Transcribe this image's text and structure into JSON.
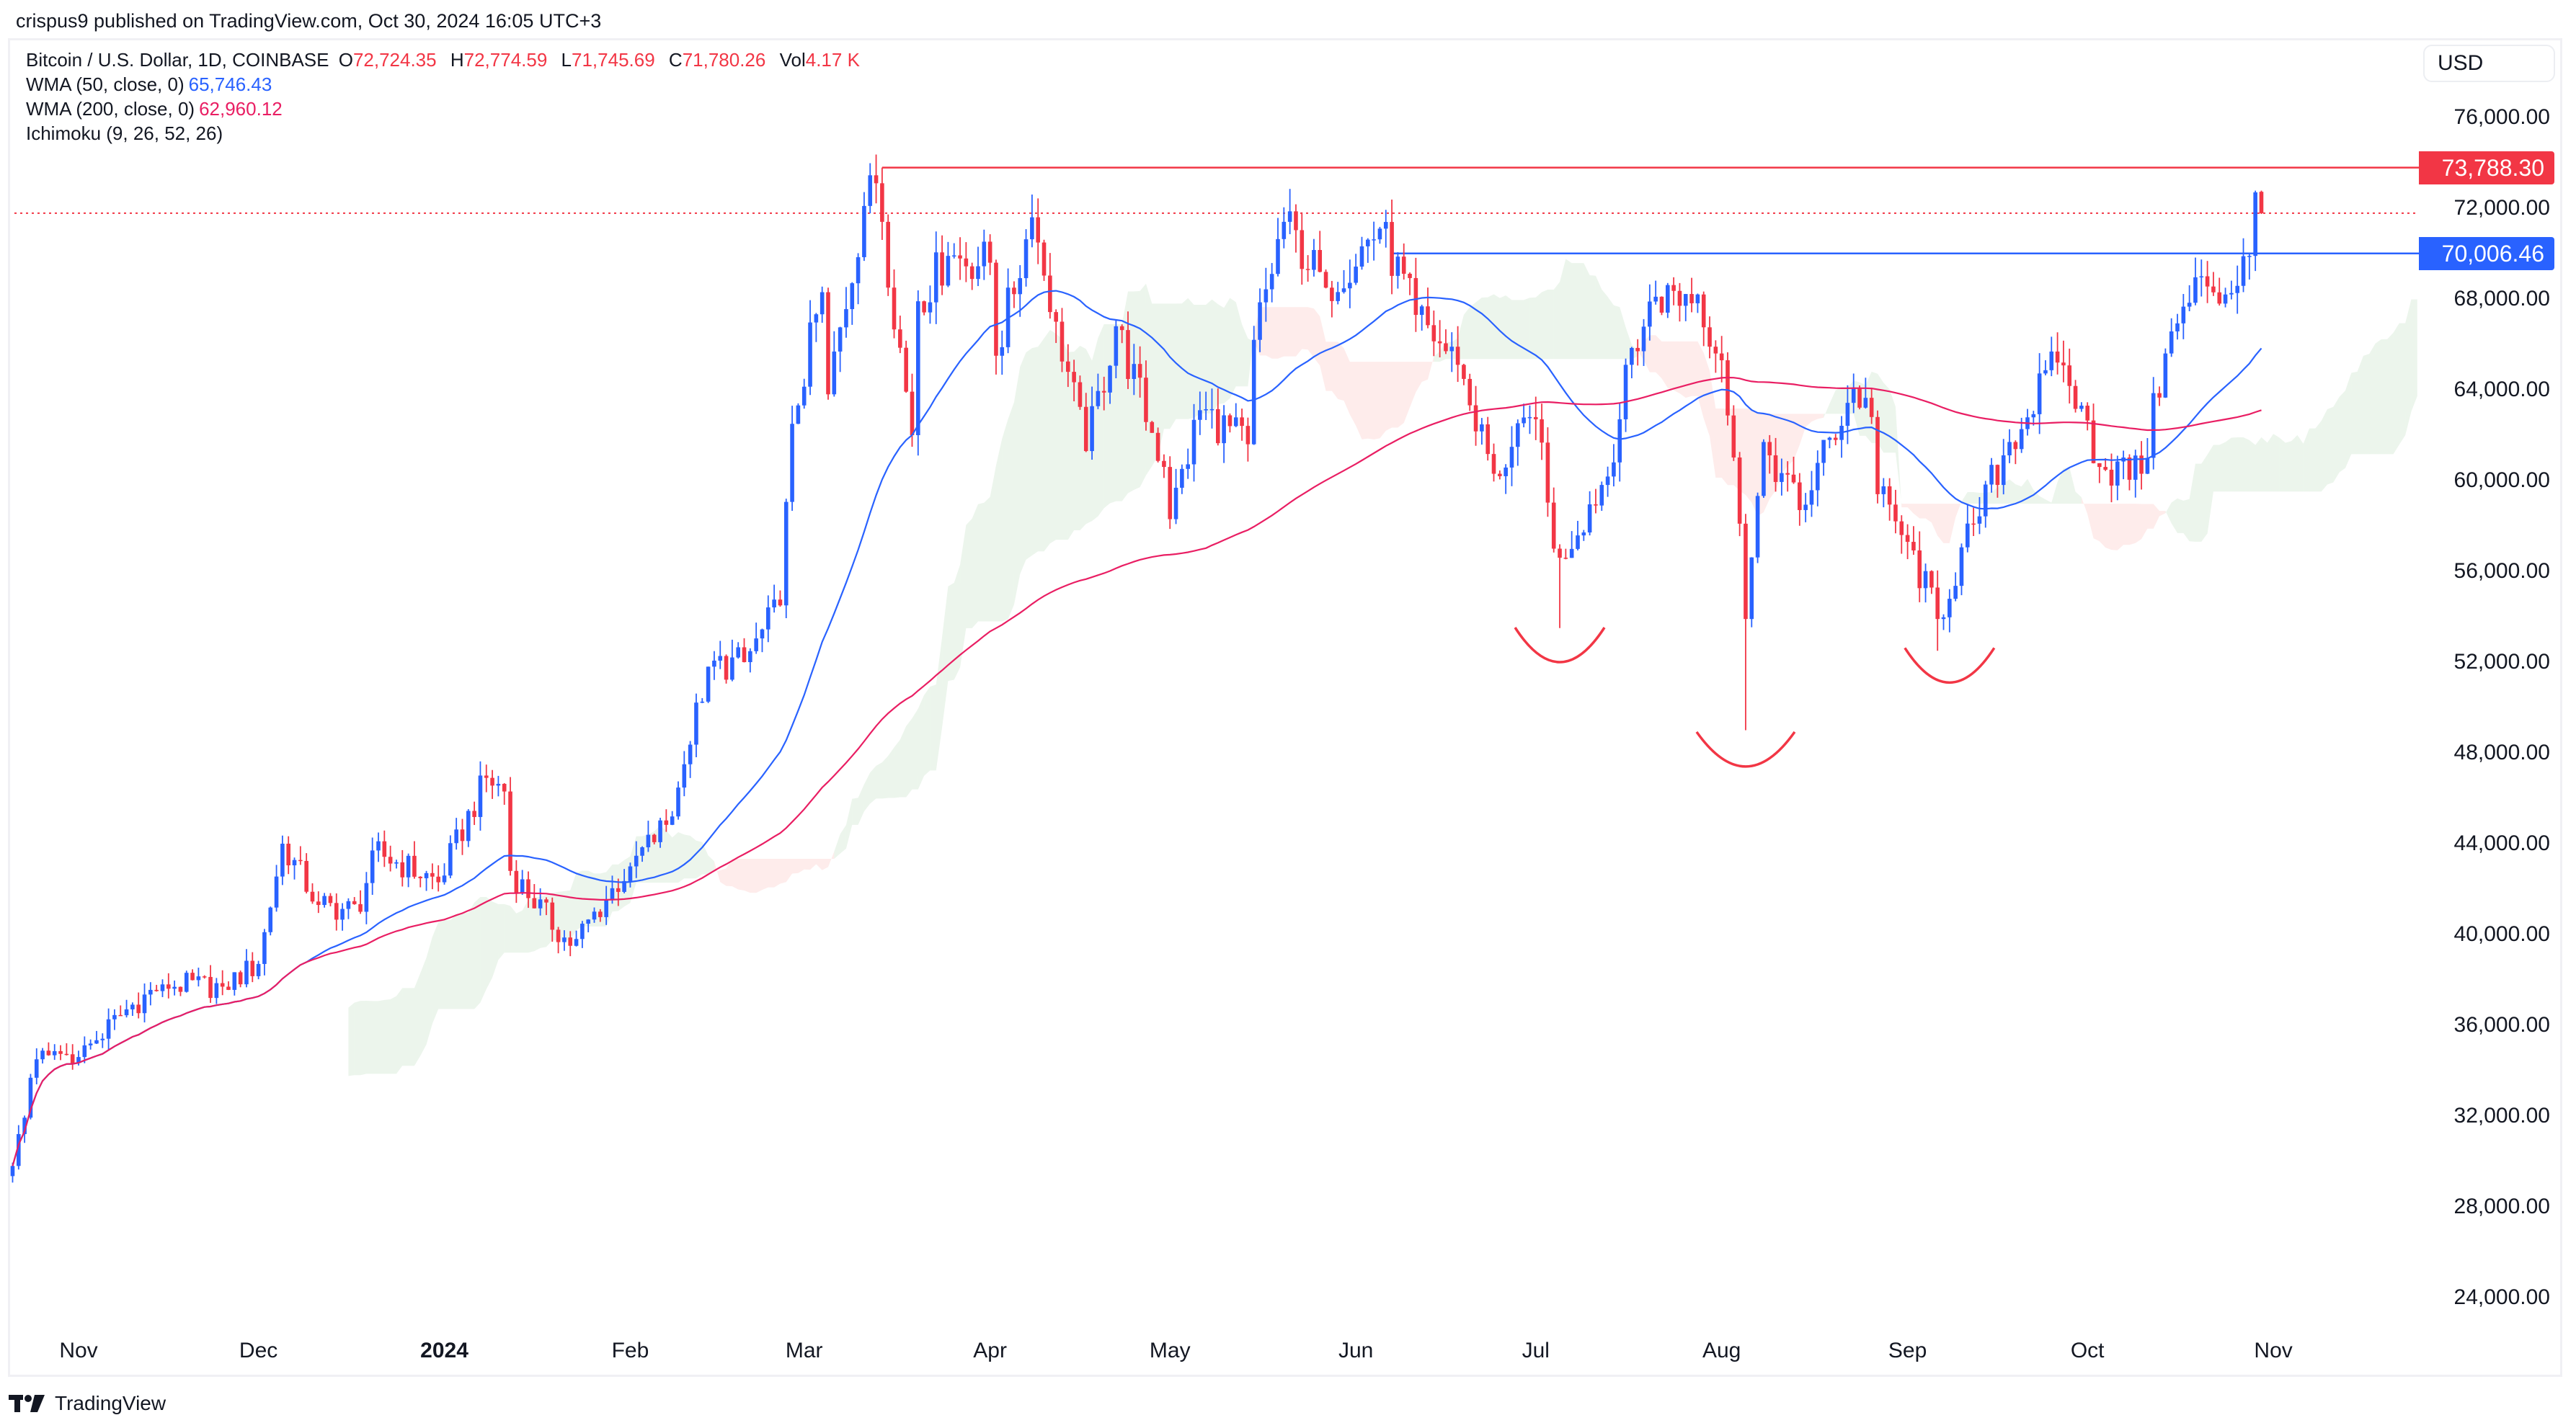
{
  "publisher": "crispus9 published on TradingView.com, Oct 30, 2024 16:05 UTC+3",
  "legend": {
    "symbol": "Bitcoin / U.S. Dollar, 1D, COINBASE",
    "o_label": "O",
    "o": "72,724.35",
    "h_label": "H",
    "h": "72,774.59",
    "l_label": "L",
    "l": "71,745.69",
    "c_label": "C",
    "c": "71,780.26",
    "vol_label": "Vol",
    "vol": "4.17 K",
    "wma50": {
      "label": "WMA (50, close, 0)",
      "value": "65,746.43"
    },
    "wma200": {
      "label": "WMA (200, close, 0)",
      "value": "62,960.12"
    },
    "ichimoku": {
      "label": "Ichimoku (9, 26, 52, 26)"
    }
  },
  "currency": "USD",
  "logo": "TradingView",
  "colors": {
    "up": "#2962ff",
    "down": "#f23645",
    "wma50": "#2962ff",
    "wma200": "#e91e63",
    "resistance": "#f23645",
    "neckline": "#2962ff",
    "cloud_bull": "#43a047",
    "cloud_bear": "#f44336",
    "pattern": "#f23645"
  },
  "chart_data": {
    "type": "candlestick",
    "ylim": [
      22000,
      78000
    ],
    "y_ticks": [
      "76,000.00",
      "72,000.00",
      "68,000.00",
      "64,000.00",
      "60,000.00",
      "56,000.00",
      "52,000.00",
      "48,000.00",
      "44,000.00",
      "40,000.00",
      "36,000.00",
      "32,000.00",
      "28,000.00",
      "24,000.00"
    ],
    "y_tick_values": [
      76000,
      72000,
      68000,
      64000,
      60000,
      56000,
      52000,
      48000,
      44000,
      40000,
      36000,
      32000,
      28000,
      24000
    ],
    "x_ticks": [
      {
        "label": "Nov",
        "date": "2023-11-01"
      },
      {
        "label": "Dec",
        "date": "2023-12-01"
      },
      {
        "label": "2024",
        "date": "2024-01-01",
        "bold": true
      },
      {
        "label": "Feb",
        "date": "2024-02-01"
      },
      {
        "label": "Mar",
        "date": "2024-03-01"
      },
      {
        "label": "Apr",
        "date": "2024-04-01"
      },
      {
        "label": "May",
        "date": "2024-05-01"
      },
      {
        "label": "Jun",
        "date": "2024-06-01"
      },
      {
        "label": "Jul",
        "date": "2024-07-01"
      },
      {
        "label": "Aug",
        "date": "2024-08-01"
      },
      {
        "label": "Sep",
        "date": "2024-09-01"
      },
      {
        "label": "Oct",
        "date": "2024-10-01"
      },
      {
        "label": "Nov",
        "date": "2024-11-01"
      }
    ],
    "approx_closes": [
      [
        "2023-10-21",
        29800
      ],
      [
        "2023-10-25",
        34500
      ],
      [
        "2023-11-01",
        34600
      ],
      [
        "2023-11-09",
        36700
      ],
      [
        "2023-11-15",
        37800
      ],
      [
        "2023-11-25",
        37700
      ],
      [
        "2023-12-01",
        38700
      ],
      [
        "2023-12-05",
        44000
      ],
      [
        "2023-12-11",
        41300
      ],
      [
        "2023-12-18",
        41000
      ],
      [
        "2023-12-20",
        43700
      ],
      [
        "2023-12-31",
        42300
      ],
      [
        "2024-01-08",
        46900
      ],
      [
        "2024-01-11",
        46300
      ],
      [
        "2024-01-12",
        42800
      ],
      [
        "2024-01-22",
        39500
      ],
      [
        "2024-01-23",
        39800
      ],
      [
        "2024-02-01",
        43000
      ],
      [
        "2024-02-08",
        45200
      ],
      [
        "2024-02-10",
        47500
      ],
      [
        "2024-02-14",
        51800
      ],
      [
        "2024-02-20",
        52000
      ],
      [
        "2024-02-26",
        54500
      ],
      [
        "2024-02-28",
        62500
      ],
      [
        "2024-03-04",
        68300
      ],
      [
        "2024-03-05",
        63800
      ],
      [
        "2024-03-11",
        72100
      ],
      [
        "2024-03-13",
        73100
      ],
      [
        "2024-03-14",
        71400
      ],
      [
        "2024-03-19",
        62000
      ],
      [
        "2024-03-20",
        67900
      ],
      [
        "2024-03-25",
        69900
      ],
      [
        "2024-04-01",
        69600
      ],
      [
        "2024-04-02",
        65500
      ],
      [
        "2024-04-08",
        71600
      ],
      [
        "2024-04-12",
        67000
      ],
      [
        "2024-04-17",
        61300
      ],
      [
        "2024-04-22",
        66800
      ],
      [
        "2024-04-30",
        60600
      ],
      [
        "2024-05-01",
        58300
      ],
      [
        "2024-05-06",
        63100
      ],
      [
        "2024-05-14",
        61600
      ],
      [
        "2024-05-15",
        66200
      ],
      [
        "2024-05-20",
        71400
      ],
      [
        "2024-05-27",
        68500
      ],
      [
        "2024-06-05",
        71100
      ],
      [
        "2024-06-11",
        67300
      ],
      [
        "2024-06-18",
        65100
      ],
      [
        "2024-06-24",
        60300
      ],
      [
        "2024-07-01",
        62700
      ],
      [
        "2024-07-04",
        57000
      ],
      [
        "2024-07-05",
        56600
      ],
      [
        "2024-07-14",
        60800
      ],
      [
        "2024-07-16",
        65100
      ],
      [
        "2024-07-21",
        68100
      ],
      [
        "2024-07-28",
        68200
      ],
      [
        "2024-08-01",
        65300
      ],
      [
        "2024-08-04",
        58100
      ],
      [
        "2024-08-05",
        53900
      ],
      [
        "2024-08-08",
        61700
      ],
      [
        "2024-08-14",
        58700
      ],
      [
        "2024-08-23",
        64100
      ],
      [
        "2024-08-26",
        62800
      ],
      [
        "2024-08-27",
        59400
      ],
      [
        "2024-09-01",
        57300
      ],
      [
        "2024-09-06",
        53900
      ],
      [
        "2024-09-12",
        58100
      ],
      [
        "2024-09-18",
        61700
      ],
      [
        "2024-09-26",
        65200
      ],
      [
        "2024-09-30",
        63300
      ],
      [
        "2024-10-03",
        60600
      ],
      [
        "2024-10-10",
        60300
      ],
      [
        "2024-10-14",
        65600
      ],
      [
        "2024-10-20",
        69000
      ],
      [
        "2024-10-24",
        68200
      ],
      [
        "2024-10-28",
        69900
      ],
      [
        "2024-10-29",
        72700
      ],
      [
        "2024-10-30",
        71780.26
      ]
    ],
    "notable_wicks": [
      [
        "2024-03-14",
        "high",
        73788.3
      ],
      [
        "2024-08-05",
        "low",
        49000
      ],
      [
        "2024-07-05",
        "low",
        53500
      ],
      [
        "2024-09-06",
        "low",
        52500
      ]
    ],
    "last_price": 71780.26,
    "horizontal_lines": [
      {
        "label": "73,788.30",
        "value": 73788.3,
        "from": "2024-03-14",
        "color": "#f23645"
      },
      {
        "label": "70,006.46",
        "value": 70006.46,
        "from": "2024-06-07",
        "color": "#2962ff"
      }
    ],
    "pattern_arcs": [
      {
        "date": "2024-07-05",
        "value": 52000
      },
      {
        "date": "2024-08-05",
        "value": 47400
      },
      {
        "date": "2024-09-08",
        "value": 51100
      }
    ]
  }
}
